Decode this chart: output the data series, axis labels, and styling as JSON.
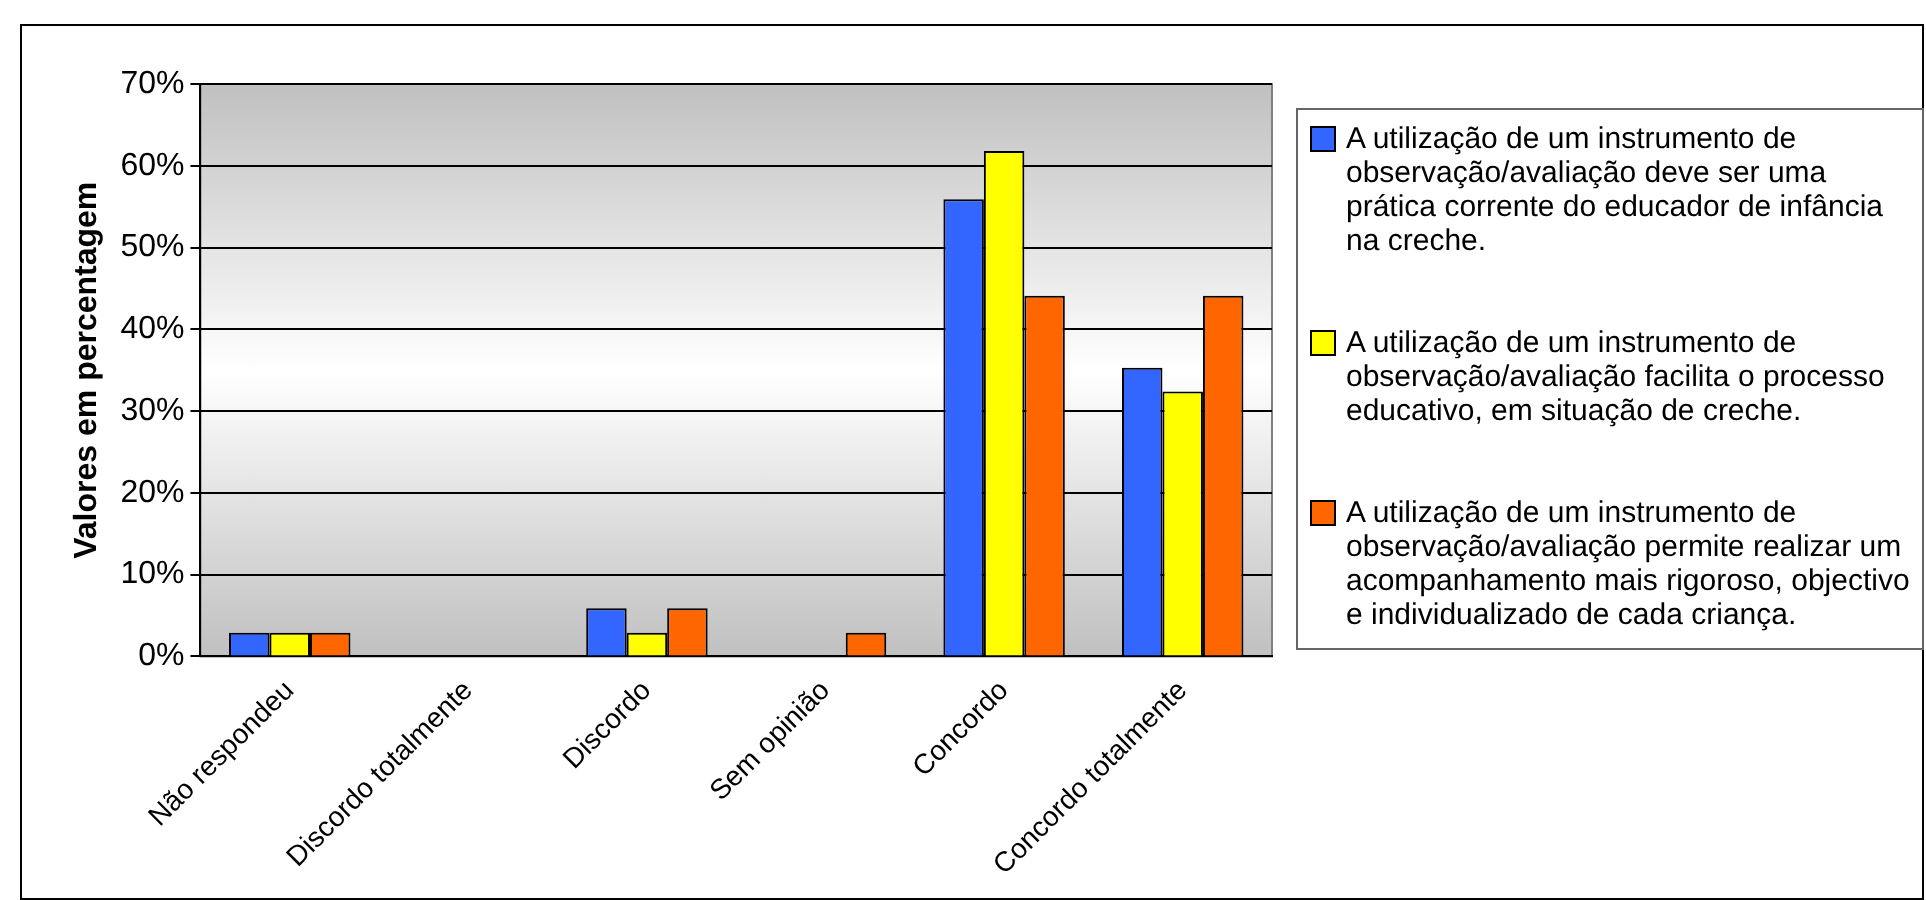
{
  "chart_data": {
    "type": "bar",
    "ylabel": "Valores em percentagem",
    "categories": [
      "Não respondeu",
      "Discordo totalmente",
      "Discordo",
      "Sem opinião",
      "Concordo",
      "Concordo totalmente"
    ],
    "series": [
      {
        "name": "A utilização de um instrumento de observação/avaliação deve ser uma prática corrente do educador de infância na creche.",
        "color": "#3366ff",
        "values": [
          2.9,
          0,
          5.9,
          0,
          55.9,
          35.3
        ]
      },
      {
        "name": "A utilização de um instrumento de observação/avaliação facilita o processo educativo, em situação de creche.",
        "color": "#ffff00",
        "values": [
          2.9,
          0,
          2.9,
          0,
          61.8,
          32.4
        ]
      },
      {
        "name": "A utilização de um instrumento de observação/avaliação permite realizar um acompanhamento mais rigoroso, objectivo e individualizado de cada criança.",
        "color": "#ff6600",
        "values": [
          2.9,
          0,
          5.9,
          2.9,
          44.1,
          44.1
        ]
      }
    ],
    "ylim": [
      0,
      70
    ],
    "yticks": [
      {
        "value": 0,
        "label": "0%"
      },
      {
        "value": 10,
        "label": "10%"
      },
      {
        "value": 20,
        "label": "20%"
      },
      {
        "value": 30,
        "label": "30%"
      },
      {
        "value": 40,
        "label": "40%"
      },
      {
        "value": 50,
        "label": "50%"
      },
      {
        "value": 60,
        "label": "60%"
      },
      {
        "value": 70,
        "label": "70%"
      }
    ],
    "grid": "y",
    "legend": "right"
  }
}
